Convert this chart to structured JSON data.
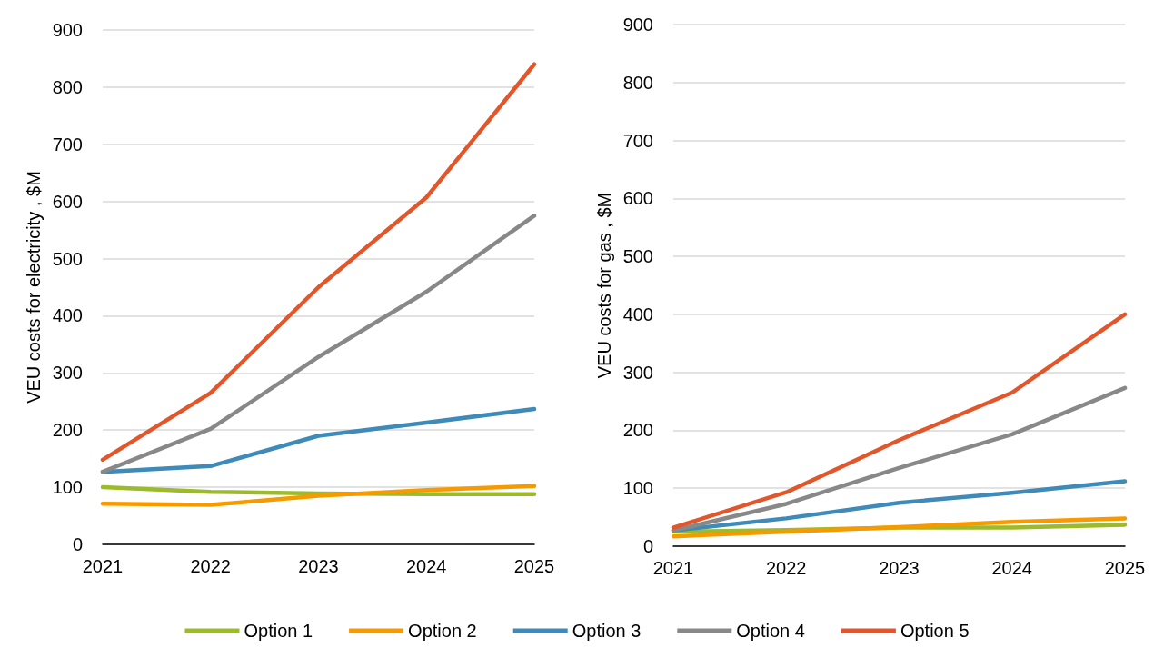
{
  "chart_data": [
    {
      "type": "line",
      "ylabel": "VEU costs for electricity , $M",
      "categories": [
        "2021",
        "2022",
        "2023",
        "2024",
        "2025"
      ],
      "ylim": [
        0,
        900
      ],
      "yticks": [
        0,
        100,
        200,
        300,
        400,
        500,
        600,
        700,
        800,
        900
      ],
      "grid": "y",
      "legend": "bottom",
      "marker": "none",
      "line_style": "solid",
      "series": [
        {
          "name": "Option 1",
          "color": "#9bbb2a",
          "values": [
            100,
            92,
            89,
            88,
            88
          ]
        },
        {
          "name": "Option 2",
          "color": "#f79a00",
          "values": [
            71,
            69,
            85,
            95,
            102
          ]
        },
        {
          "name": "Option 3",
          "color": "#3e8ab8",
          "values": [
            127,
            137,
            190,
            213,
            237
          ]
        },
        {
          "name": "Option 4",
          "color": "#888888",
          "values": [
            127,
            202,
            328,
            442,
            575
          ]
        },
        {
          "name": "Option 5",
          "color": "#e2562b",
          "values": [
            148,
            265,
            450,
            607,
            840
          ]
        }
      ]
    },
    {
      "type": "line",
      "ylabel": "VEU costs for gas , $M",
      "categories": [
        "2021",
        "2022",
        "2023",
        "2024",
        "2025"
      ],
      "ylim": [
        0,
        900
      ],
      "yticks": [
        0,
        100,
        200,
        300,
        400,
        500,
        600,
        700,
        800,
        900
      ],
      "grid": "y",
      "legend": false,
      "marker": "none",
      "line_style": "solid",
      "series": [
        {
          "color": "#9bbb2a",
          "values": [
            25,
            28,
            32,
            32,
            37
          ]
        },
        {
          "color": "#f79a00",
          "values": [
            17,
            25,
            33,
            42,
            48
          ]
        },
        {
          "color": "#3e8ab8",
          "values": [
            27,
            48,
            75,
            92,
            112
          ]
        },
        {
          "color": "#888888",
          "values": [
            27,
            73,
            135,
            193,
            273
          ]
        },
        {
          "color": "#e2562b",
          "values": [
            32,
            93,
            183,
            265,
            400
          ]
        }
      ]
    }
  ]
}
